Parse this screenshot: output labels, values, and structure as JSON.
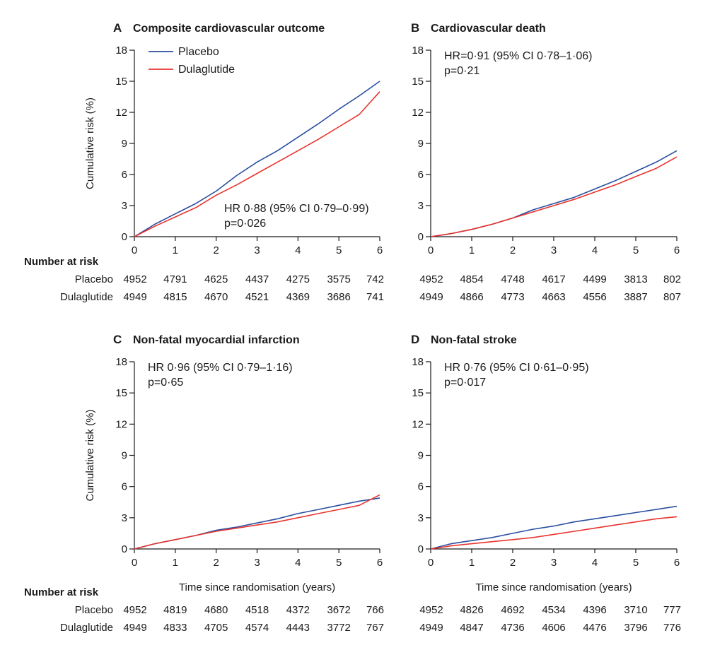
{
  "colors": {
    "placebo": "#2a4fa0",
    "dulaglutide": "#e8342e"
  },
  "risk_header": "Number at risk",
  "risk_group_labels": [
    "Placebo",
    "Dulaglutide"
  ],
  "chart_data": [
    {
      "type": "line",
      "panel": "A",
      "title": "Composite cardiovascular outcome",
      "xlabel": "",
      "ylabel": "Cumulative risk (%)",
      "xlim": [
        0,
        6
      ],
      "ylim": [
        0,
        18
      ],
      "xticks": [
        0,
        1,
        2,
        3,
        4,
        5,
        6
      ],
      "yticks": [
        0,
        3,
        6,
        9,
        12,
        15,
        18
      ],
      "legend": {
        "position": "top-left",
        "entries": [
          "Placebo",
          "Dulaglutide"
        ]
      },
      "annotation": [
        "HR 0·88 (95% CI 0·79–0·99)",
        "p=0·026"
      ],
      "annotation_position": "lower-right",
      "series": [
        {
          "name": "Placebo",
          "x": [
            0,
            0.5,
            1,
            1.5,
            2,
            2.5,
            3,
            3.5,
            4,
            4.5,
            5,
            5.5,
            6
          ],
          "y": [
            0,
            1.2,
            2.2,
            3.2,
            4.4,
            5.9,
            7.2,
            8.3,
            9.6,
            10.9,
            12.3,
            13.6,
            15.0
          ]
        },
        {
          "name": "Dulaglutide",
          "x": [
            0,
            0.5,
            1,
            1.5,
            2,
            2.5,
            3,
            3.5,
            4,
            4.5,
            5,
            5.5,
            6
          ],
          "y": [
            0,
            1.0,
            1.9,
            2.8,
            4.0,
            5.0,
            6.1,
            7.2,
            8.3,
            9.4,
            10.6,
            11.8,
            14.0
          ]
        }
      ],
      "number_at_risk": {
        "Placebo": [
          "4952",
          "4791",
          "4625",
          "4437",
          "4275",
          "3575",
          "742"
        ],
        "Dulaglutide": [
          "4949",
          "4815",
          "4670",
          "4521",
          "4369",
          "3686",
          "741"
        ]
      }
    },
    {
      "type": "line",
      "panel": "B",
      "title": "Cardiovascular death",
      "xlabel": "",
      "ylabel": "",
      "xlim": [
        0,
        6
      ],
      "ylim": [
        0,
        18
      ],
      "xticks": [
        0,
        1,
        2,
        3,
        4,
        5,
        6
      ],
      "yticks": [
        0,
        3,
        6,
        9,
        12,
        15,
        18
      ],
      "annotation": [
        "HR=0·91 (95% CI 0·78–1·06)",
        "p=0·21"
      ],
      "annotation_position": "top-left",
      "series": [
        {
          "name": "Placebo",
          "x": [
            0,
            0.5,
            1,
            1.5,
            2,
            2.5,
            3,
            3.5,
            4,
            4.5,
            5,
            5.5,
            6
          ],
          "y": [
            0,
            0.3,
            0.7,
            1.2,
            1.8,
            2.6,
            3.2,
            3.8,
            4.6,
            5.4,
            6.3,
            7.2,
            8.3
          ]
        },
        {
          "name": "Dulaglutide",
          "x": [
            0,
            0.5,
            1,
            1.5,
            2,
            2.5,
            3,
            3.5,
            4,
            4.5,
            5,
            5.5,
            6
          ],
          "y": [
            0,
            0.3,
            0.7,
            1.2,
            1.8,
            2.4,
            3.0,
            3.6,
            4.3,
            5.0,
            5.8,
            6.6,
            7.7
          ]
        }
      ],
      "number_at_risk": {
        "Placebo": [
          "4952",
          "4854",
          "4748",
          "4617",
          "4499",
          "3813",
          "802"
        ],
        "Dulaglutide": [
          "4949",
          "4866",
          "4773",
          "4663",
          "4556",
          "3887",
          "807"
        ]
      }
    },
    {
      "type": "line",
      "panel": "C",
      "title": "Non-fatal myocardial infarction",
      "xlabel": "Time since randomisation (years)",
      "ylabel": "Cumulative risk (%)",
      "xlim": [
        0,
        6
      ],
      "ylim": [
        0,
        18
      ],
      "xticks": [
        0,
        1,
        2,
        3,
        4,
        5,
        6
      ],
      "yticks": [
        0,
        3,
        6,
        9,
        12,
        15,
        18
      ],
      "annotation": [
        "HR 0·96 (95% CI 0·79–1·16)",
        "p=0·65"
      ],
      "annotation_position": "top-left",
      "series": [
        {
          "name": "Placebo",
          "x": [
            0,
            0.5,
            1,
            1.5,
            2,
            2.5,
            3,
            3.5,
            4,
            4.5,
            5,
            5.5,
            6
          ],
          "y": [
            0,
            0.5,
            0.9,
            1.3,
            1.8,
            2.1,
            2.5,
            2.9,
            3.4,
            3.8,
            4.2,
            4.6,
            4.9
          ]
        },
        {
          "name": "Dulaglutide",
          "x": [
            0,
            0.5,
            1,
            1.5,
            2,
            2.5,
            3,
            3.5,
            4,
            4.5,
            5,
            5.5,
            6
          ],
          "y": [
            0,
            0.5,
            0.9,
            1.3,
            1.7,
            2.0,
            2.3,
            2.6,
            3.0,
            3.4,
            3.8,
            4.2,
            5.2
          ]
        }
      ],
      "number_at_risk": {
        "Placebo": [
          "4952",
          "4819",
          "4680",
          "4518",
          "4372",
          "3672",
          "766"
        ],
        "Dulaglutide": [
          "4949",
          "4833",
          "4705",
          "4574",
          "4443",
          "3772",
          "767"
        ]
      }
    },
    {
      "type": "line",
      "panel": "D",
      "title": "Non-fatal stroke",
      "xlabel": "Time since randomisation (years)",
      "ylabel": "",
      "xlim": [
        0,
        6
      ],
      "ylim": [
        0,
        18
      ],
      "xticks": [
        0,
        1,
        2,
        3,
        4,
        5,
        6
      ],
      "yticks": [
        0,
        3,
        6,
        9,
        12,
        15,
        18
      ],
      "annotation": [
        "HR 0·76 (95% CI 0·61–0·95)",
        "p=0·017"
      ],
      "annotation_position": "top-left",
      "series": [
        {
          "name": "Placebo",
          "x": [
            0,
            0.5,
            1,
            1.5,
            2,
            2.5,
            3,
            3.5,
            4,
            4.5,
            5,
            5.5,
            6
          ],
          "y": [
            0,
            0.5,
            0.8,
            1.1,
            1.5,
            1.9,
            2.2,
            2.6,
            2.9,
            3.2,
            3.5,
            3.8,
            4.1
          ]
        },
        {
          "name": "Dulaglutide",
          "x": [
            0,
            0.5,
            1,
            1.5,
            2,
            2.5,
            3,
            3.5,
            4,
            4.5,
            5,
            5.5,
            6
          ],
          "y": [
            0,
            0.3,
            0.5,
            0.7,
            0.9,
            1.1,
            1.4,
            1.7,
            2.0,
            2.3,
            2.6,
            2.9,
            3.1
          ]
        }
      ],
      "number_at_risk": {
        "Placebo": [
          "4952",
          "4826",
          "4692",
          "4534",
          "4396",
          "3710",
          "777"
        ],
        "Dulaglutide": [
          "4949",
          "4847",
          "4736",
          "4606",
          "4476",
          "3796",
          "776"
        ]
      }
    }
  ]
}
